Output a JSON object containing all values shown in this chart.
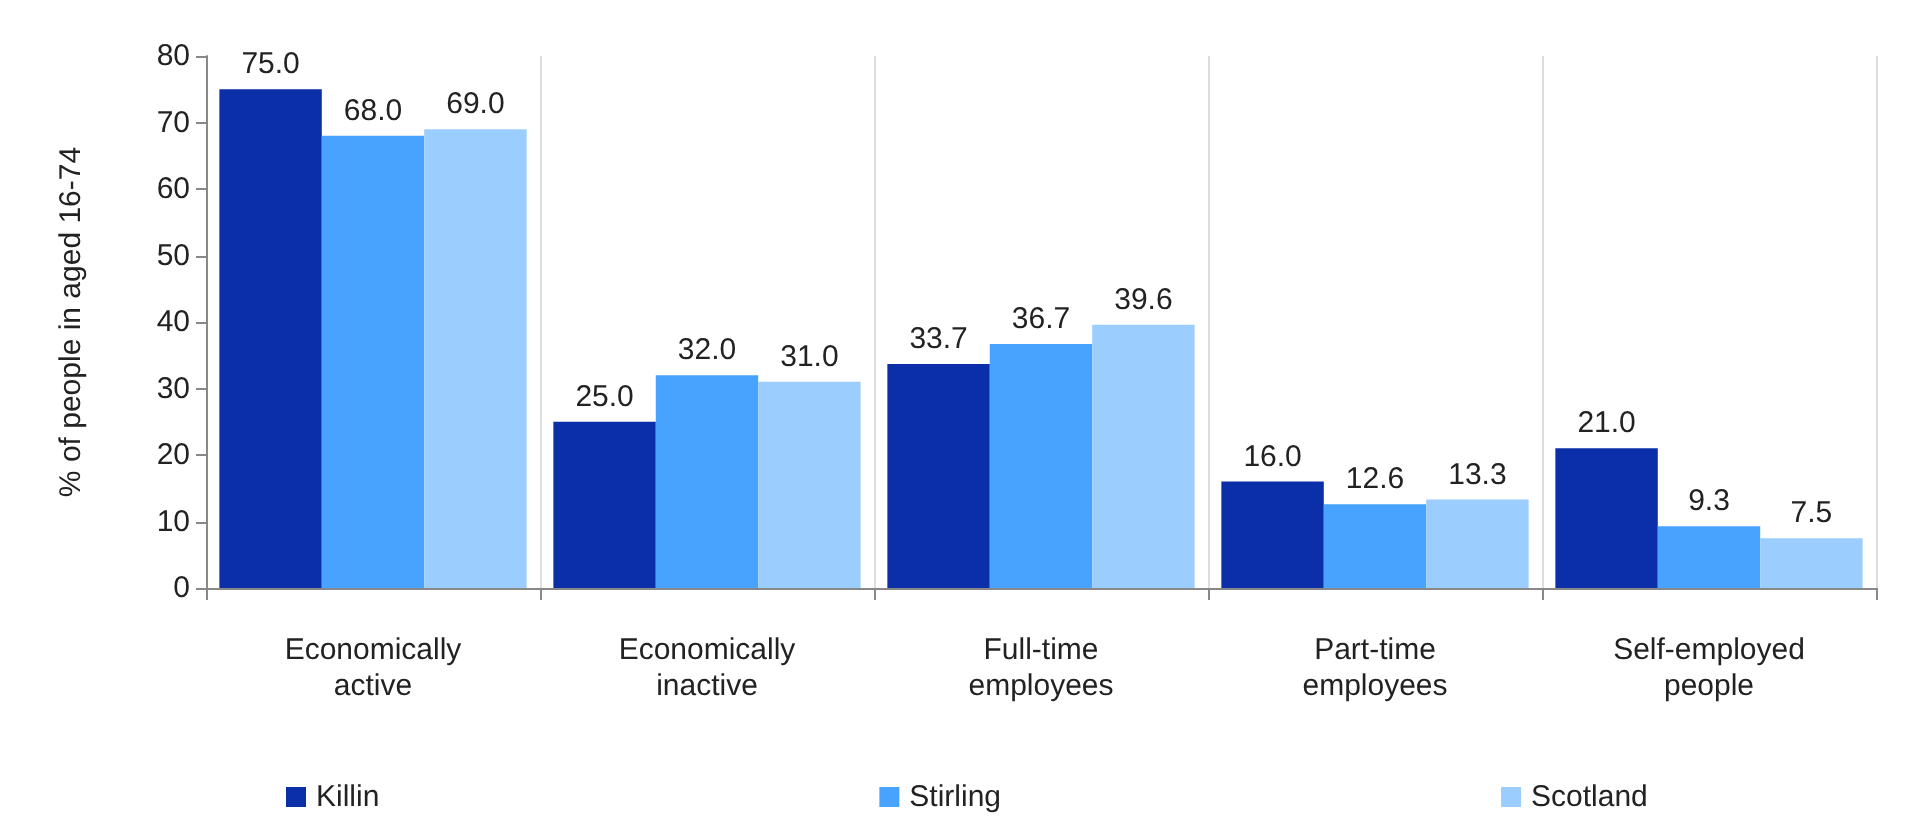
{
  "chart_data": {
    "type": "bar",
    "ylabel": "% of people in aged 16-74",
    "categories": [
      "Economically\nactive",
      "Economically\ninactive",
      "Full-time\nemployees",
      "Part-time\nemployees",
      "Self-employed\npeople"
    ],
    "series": [
      {
        "name": "Killin",
        "color": "#0a2fa8",
        "values": [
          75.0,
          25.0,
          33.7,
          16.0,
          21.0
        ],
        "value_labels": [
          "75.0",
          "25.0",
          "33.7",
          "16.0",
          "21.0"
        ]
      },
      {
        "name": "Stirling",
        "color": "#47a3ff",
        "values": [
          68.0,
          32.0,
          36.7,
          12.6,
          9.3
        ],
        "value_labels": [
          "68.0",
          "32.0",
          "36.7",
          "12.6",
          "9.3"
        ]
      },
      {
        "name": "Scotland",
        "color": "#9ccdff",
        "values": [
          69.0,
          31.0,
          39.6,
          13.3,
          7.5
        ],
        "value_labels": [
          "69.0",
          "31.0",
          "39.6",
          "13.3",
          "7.5"
        ]
      }
    ],
    "ylim": [
      0,
      80
    ],
    "yticks": [
      0,
      10,
      20,
      30,
      40,
      50,
      60,
      70,
      80
    ],
    "grid": "x",
    "legend": "bottom"
  }
}
